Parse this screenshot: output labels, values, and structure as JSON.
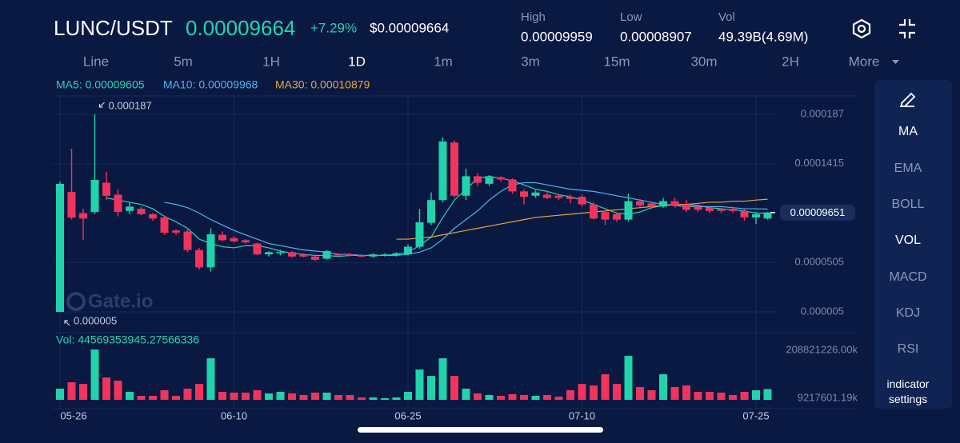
{
  "header": {
    "pair": "LUNC/USDT",
    "price": "0.00009664",
    "change": "+7.29%",
    "usd_price": "$0.00009664",
    "stats": [
      {
        "label": "High",
        "value": "0.00009959"
      },
      {
        "label": "Low",
        "value": "0.00008907"
      },
      {
        "label": "Vol",
        "value": "49.39B(4.69M)"
      }
    ]
  },
  "timeframes": [
    {
      "label": "Line",
      "active": false
    },
    {
      "label": "5m",
      "active": false
    },
    {
      "label": "1H",
      "active": false
    },
    {
      "label": "1D",
      "active": true
    },
    {
      "label": "1m",
      "active": false
    },
    {
      "label": "3m",
      "active": false
    },
    {
      "label": "15m",
      "active": false
    },
    {
      "label": "30m",
      "active": false
    },
    {
      "label": "2H",
      "active": false
    },
    {
      "label": "More",
      "active": false
    }
  ],
  "indicators": [
    {
      "label": "MA",
      "active": true
    },
    {
      "label": "EMA",
      "active": false
    },
    {
      "label": "BOLL",
      "active": false
    },
    {
      "label": "VOL",
      "active": true
    },
    {
      "label": "MACD",
      "active": false
    },
    {
      "label": "KDJ",
      "active": false
    },
    {
      "label": "RSI",
      "active": false
    },
    {
      "label": "indicator settings",
      "active": true
    }
  ],
  "chart_data": [
    {
      "type": "candlestick",
      "watermark": "Gate.io",
      "categories": [
        "05-26",
        null,
        null,
        null,
        null,
        null,
        null,
        null,
        null,
        null,
        null,
        null,
        null,
        null,
        null,
        "06-10",
        null,
        null,
        null,
        null,
        null,
        null,
        null,
        null,
        null,
        null,
        null,
        null,
        null,
        null,
        "06-25",
        null,
        null,
        null,
        null,
        null,
        null,
        null,
        null,
        null,
        null,
        null,
        null,
        null,
        null,
        "07-10",
        null,
        null,
        null,
        null,
        null,
        null,
        null,
        null,
        null,
        null,
        null,
        null,
        null,
        null,
        "07-25",
        null
      ],
      "open": [
        5e-06,
        0.0001155,
        9.6e-05,
        9.71e-05,
        0.000124,
        0.000113,
        9.8e-05,
        0.0001,
        9.5e-05,
        9.2e-05,
        8e-05,
        7.9e-05,
        6.2e-05,
        4.6e-05,
        7.6e-05,
        7.3e-05,
        7.1e-05,
        6.8e-05,
        5.8e-05,
        5.9e-05,
        6e-05,
        5.8e-05,
        5.6e-05,
        5.4e-05,
        5.8e-05,
        5.8e-05,
        5.7e-05,
        5.6e-05,
        5.7e-05,
        5.7e-05,
        5.8e-05,
        6.5e-05,
        8.7e-05,
        0.000108,
        0.000161,
        0.000112,
        0.00013,
        0.000123,
        0.000129,
        0.000127,
        0.000116,
        0.000112,
        0.000113,
        0.000112,
        0.000111,
        0.000111,
        0.000104,
        9.7e-05,
        9.5e-05,
        9e-05,
        0.000107,
        0.000105,
        0.000102,
        0.000107,
        0.000104,
        0.000102,
        0.000101,
        0.0001,
        0.0001,
        9.8e-05,
        9.2e-05,
        9.1e-05
      ],
      "high": [
        0.000125,
        0.0001553,
        0.0001,
        0.000187,
        0.000134,
        0.000118,
        0.000106,
        0.000102,
        9.6e-05,
        9.4e-05,
        8.1e-05,
        8.1e-05,
        6.4e-05,
        8.2e-05,
        7.9e-05,
        7.5e-05,
        7.2e-05,
        6.9e-05,
        6.1e-05,
        6.2e-05,
        6.1e-05,
        5.9e-05,
        5.7e-05,
        6.2e-05,
        5.9e-05,
        5.9e-05,
        5.8e-05,
        5.9e-05,
        5.9e-05,
        6e-05,
        6.7e-05,
        0.0001,
        0.000115,
        0.000166,
        0.000163,
        0.000137,
        0.000133,
        0.000131,
        0.00013,
        0.000128,
        0.000118,
        0.000117,
        0.000116,
        0.000113,
        0.000113,
        0.000113,
        0.000106,
        9.8e-05,
        9.6e-05,
        0.000114,
        0.000109,
        0.000106,
        0.00011,
        0.00011,
        0.000108,
        0.000104,
        0.000102,
        0.000101,
        0.000102,
        0.0001,
        9.7e-05,
        9.7e-05
      ],
      "low": [
        5e-06,
        9e-05,
        7.1e-05,
        9.5e-05,
        0.000108,
        9.3e-05,
        9.5e-05,
        9.4e-05,
        8.9e-05,
        7.6e-05,
        7.6e-05,
        6e-05,
        4.4e-05,
        4.2e-05,
        7e-05,
        6.9e-05,
        6.8e-05,
        5.7e-05,
        5.6e-05,
        5.7e-05,
        5.5e-05,
        5.5e-05,
        5.2e-05,
        5.3e-05,
        5.6e-05,
        5.6e-05,
        5.5e-05,
        5.5e-05,
        5.6e-05,
        5.6e-05,
        5.7e-05,
        6.3e-05,
        8.5e-05,
        0.000106,
        0.00011,
        0.000108,
        0.000121,
        0.000121,
        0.000125,
        0.000114,
        0.000104,
        0.00011,
        0.000109,
        0.000108,
        0.000105,
        0.000102,
        9e-05,
        8.5e-05,
        8.8e-05,
        8.8e-05,
        0.000101,
        0.0001,
        0.000101,
        0.000101,
        9.7e-05,
        9.7e-05,
        9.6e-05,
        9.6e-05,
        9.6e-05,
        8.9e-05,
        8.6e-05,
        9e-05
      ],
      "close": [
        0.0001229,
        9.19e-05,
        9.1e-05,
        0.0001266,
        0.000112,
        9.7e-05,
        0.000102,
        9.5e-05,
        9.1e-05,
        7.8e-05,
        7.8e-05,
        6.2e-05,
        4.6e-05,
        7.65e-05,
        7.1e-05,
        7e-05,
        6.9e-05,
        5.8e-05,
        6e-05,
        6e-05,
        5.6e-05,
        5.6e-05,
        5.3e-05,
        6.1e-05,
        5.7e-05,
        5.7e-05,
        5.6e-05,
        5.8e-05,
        5.8e-05,
        5.9e-05,
        6.5e-05,
        8.75e-05,
        0.000108,
        0.000162,
        0.000112,
        0.00013,
        0.000124,
        0.000129,
        0.000127,
        0.000116,
        0.000111,
        0.000115,
        0.00011,
        0.00011,
        0.000109,
        0.000104,
        9.1e-05,
        9e-05,
        9e-05,
        0.000107,
        0.000103,
        0.000102,
        0.000107,
        0.000103,
        9.9e-05,
        9.9e-05,
        9.8e-05,
        9.8e-05,
        9.8e-05,
        9.2e-05,
        9.5e-05,
        9.66e-05
      ],
      "up_color": "#20d3aa",
      "down_color": "#f0345b",
      "series": [
        {
          "name": "MA5: 0.00009605",
          "color": "#2fd3b3",
          "values": [
            null,
            null,
            null,
            null,
            0.00011,
            0.000108,
            0.000106,
            0.000104,
            0.0001,
            9.3e-05,
            8.8e-05,
            8.2e-05,
            7.2e-05,
            6.8e-05,
            6.5e-05,
            6.4e-05,
            6.6e-05,
            6.6e-05,
            6.4e-05,
            6.1e-05,
            5.9e-05,
            5.8e-05,
            5.7e-05,
            5.7e-05,
            5.6e-05,
            5.7e-05,
            5.7e-05,
            5.7e-05,
            5.7e-05,
            5.8e-05,
            6e-05,
            6.6e-05,
            7.4e-05,
            9.2e-05,
            0.000108,
            0.000118,
            0.000128,
            0.00013,
            0.000128,
            0.000126,
            0.000122,
            0.000118,
            0.000116,
            0.000113,
            0.000111,
            0.000108,
            0.000104,
            0.0001,
            9.6e-05,
            9.5e-05,
            9.7e-05,
            0.000101,
            0.000103,
            0.000104,
            0.000104,
            0.000103,
            0.000101,
            0.0001,
            9.9e-05,
            9.8e-05,
            9.6e-05,
            9.605e-05
          ]
        },
        {
          "name": "MA10: 0.00009968",
          "color": "#4bb4f2",
          "values": [
            null,
            null,
            null,
            null,
            null,
            null,
            null,
            null,
            null,
            0.000106,
            0.000104,
            0.000101,
            9.6e-05,
            9e-05,
            8.5e-05,
            8e-05,
            7.6e-05,
            7.2e-05,
            6.8e-05,
            6.6e-05,
            6.4e-05,
            6.2e-05,
            6.1e-05,
            6e-05,
            5.8e-05,
            5.8e-05,
            5.7e-05,
            5.7e-05,
            5.7e-05,
            5.7e-05,
            5.8e-05,
            6e-05,
            6.4e-05,
            7.2e-05,
            8.2e-05,
            9e-05,
            9.8e-05,
            0.000108,
            0.000116,
            0.000122,
            0.000124,
            0.000124,
            0.000122,
            0.00012,
            0.000118,
            0.000117,
            0.000116,
            0.000114,
            0.000112,
            0.00011,
            0.000108,
            0.000106,
            0.000104,
            0.000103,
            0.000102,
            0.000102,
            0.000102,
            0.000102,
            0.000101,
            0.0001,
            0.0001,
            9.968e-05
          ]
        },
        {
          "name": "MA30: 0.00010879",
          "color": "#e9a53c",
          "values": [
            null,
            null,
            null,
            null,
            null,
            null,
            null,
            null,
            null,
            null,
            null,
            null,
            null,
            null,
            null,
            null,
            null,
            null,
            null,
            null,
            null,
            null,
            null,
            null,
            null,
            null,
            null,
            null,
            null,
            7.2e-05,
            7.2e-05,
            7.3e-05,
            7.4e-05,
            7.6e-05,
            7.8e-05,
            8e-05,
            8.2e-05,
            8.4e-05,
            8.6e-05,
            8.8e-05,
            9e-05,
            9.2e-05,
            9.3e-05,
            9.4e-05,
            9.5e-05,
            9.6e-05,
            9.7e-05,
            9.8e-05,
            9.9e-05,
            0.0001,
            0.000101,
            0.000102,
            0.000103,
            0.000104,
            0.000104,
            0.000105,
            0.000106,
            0.000106,
            0.000107,
            0.000107,
            0.000108,
            0.00010879
          ]
        }
      ],
      "ylim": [
        5e-06,
        0.000187
      ],
      "yticks": [
        0.000187,
        0.0001415,
        5.05e-05,
        5e-06
      ],
      "annotations": [
        {
          "text": "0.000187",
          "value": 0.000187,
          "index": 3
        },
        {
          "text": "0.000005",
          "value": 5e-06,
          "index": 0
        }
      ],
      "last_price": 9.651e-05,
      "grid": true
    },
    {
      "type": "bar",
      "label": "Vol: 44569353945.27566336",
      "values": [
        46300000000.0,
        72800000000.0,
        66200000000.0,
        208500000000.0,
        92700000000.0,
        79400000000.0,
        33100000000.0,
        16600000000.0,
        16600000000.0,
        39700000000.0,
        16600000000.0,
        46300000000.0,
        66200000000.0,
        172100000000.0,
        33100000000.0,
        29800000000.0,
        29800000000.0,
        39700000000.0,
        26500000000.0,
        33100000000.0,
        26500000000.0,
        19900000000.0,
        29800000000.0,
        29800000000.0,
        19900000000.0,
        19900000000.0,
        9900000000.0,
        9900000000.0,
        6600000000.0,
        9900000000.0,
        33100000000.0,
        125800000000.0,
        99300000000.0,
        172100000000.0,
        99300000000.0,
        46300000000.0,
        26500000000.0,
        19900000000.0,
        16600000000.0,
        23200000000.0,
        19900000000.0,
        16600000000.0,
        19900000000.0,
        13200000000.0,
        39700000000.0,
        66200000000.0,
        59600000000.0,
        105900000000.0,
        66200000000.0,
        182100000000.0,
        53000000000.0,
        39700000000.0,
        105900000000.0,
        53000000000.0,
        59600000000.0,
        33100000000.0,
        33100000000.0,
        29800000000.0,
        19900000000.0,
        33100000000.0,
        39700000000.0,
        44570000000.0
      ],
      "ylim": [
        0,
        208821226000
      ],
      "yticks": [
        {
          "value": 208821226000,
          "label": "208821226.00k"
        },
        {
          "value": 9217601190,
          "label": "9217601.19k"
        }
      ]
    }
  ]
}
